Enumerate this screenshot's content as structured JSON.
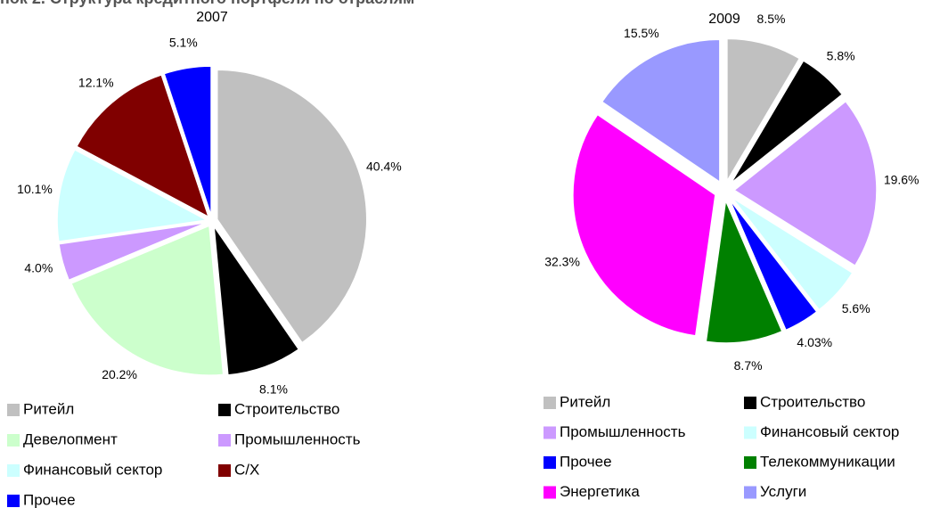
{
  "header": {
    "title": "нок 2. Структура кредитного портфеля по отраслям"
  },
  "chart_data": [
    {
      "type": "pie",
      "title": "2007",
      "categories": [
        "Ритейл",
        "Строительство",
        "Девелопмент",
        "Промышленность",
        "Финансовый сектор",
        "С/Х",
        "Прочее"
      ],
      "values": [
        40.4,
        8.1,
        20.2,
        4.0,
        10.1,
        12.1,
        5.1
      ],
      "value_labels": [
        "40.4%",
        "8.1%",
        "20.2%",
        "4.0%",
        "10.1%",
        "12.1%",
        "5.1%"
      ],
      "colors": [
        "#c0c0c0",
        "#000000",
        "#ccffcc",
        "#cc99ff",
        "#ccffff",
        "#800000",
        "#0000ff"
      ]
    },
    {
      "type": "pie",
      "title": "2009",
      "categories": [
        "Ритейл",
        "Строительство",
        "Промышленность",
        "Финансовый сектор",
        "Прочее",
        "Телекоммуникации",
        "Энергетика",
        "Услуги"
      ],
      "values": [
        8.5,
        5.8,
        19.6,
        5.6,
        4.03,
        8.7,
        32.3,
        15.5
      ],
      "value_labels": [
        "8.5%",
        "5.8%",
        "19.6%",
        "5.6%",
        "4.03%",
        "8.7%",
        "32.3%",
        "15.5%"
      ],
      "colors": [
        "#c0c0c0",
        "#000000",
        "#cc99ff",
        "#ccffff",
        "#0000ff",
        "#008000",
        "#ff00ff",
        "#9999ff"
      ]
    }
  ]
}
